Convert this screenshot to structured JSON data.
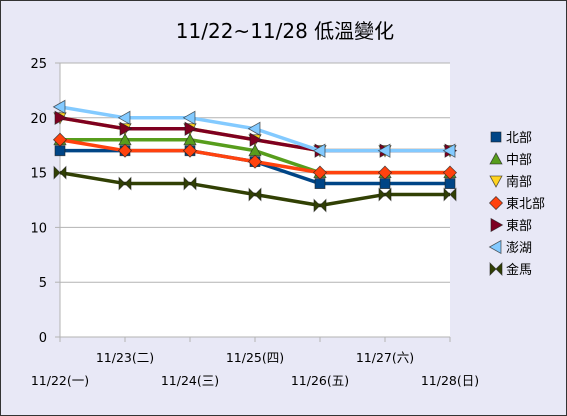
{
  "colors": {
    "background": "#e8e8f6",
    "plot_background": "#ffffff",
    "grid": "#b3b3b3",
    "axis": "#b3b3b3",
    "border": "#333333"
  },
  "chart_data": {
    "type": "line",
    "title": "11/22~11/28 低溫變化",
    "xlabel": "",
    "ylabel": "",
    "categories": [
      "11/22(一)",
      "11/23(二)",
      "11/24(三)",
      "11/25(四)",
      "11/26(五)",
      "11/27(六)",
      "11/28(日)"
    ],
    "ylim": [
      0,
      25
    ],
    "yticks": [
      0,
      5,
      10,
      15,
      20,
      25
    ],
    "grid": true,
    "legend_position": "right",
    "series": [
      {
        "name": "北部",
        "color": "#004586",
        "marker": "square",
        "values": [
          17,
          17,
          17,
          16,
          14,
          14,
          14
        ]
      },
      {
        "name": "中部",
        "color": "#579d1c",
        "marker": "triangle-up",
        "values": [
          18,
          18,
          18,
          17,
          15,
          15,
          15
        ]
      },
      {
        "name": "南部",
        "color": "#ffd320",
        "marker": "triangle-down",
        "values": [
          20,
          19,
          19,
          18,
          17,
          17,
          17
        ]
      },
      {
        "name": "東北部",
        "color": "#ff420e",
        "marker": "diamond",
        "values": [
          18,
          17,
          17,
          16,
          15,
          15,
          15
        ]
      },
      {
        "name": "東部",
        "color": "#7e0021",
        "marker": "triangle-right",
        "values": [
          20,
          19,
          19,
          18,
          17,
          17,
          17
        ]
      },
      {
        "name": "澎湖",
        "color": "#83caff",
        "marker": "triangle-left",
        "values": [
          21,
          20,
          20,
          19,
          17,
          17,
          17
        ]
      },
      {
        "name": "金馬",
        "color": "#314004",
        "marker": "bowtie",
        "values": [
          15,
          14,
          14,
          13,
          12,
          13,
          13
        ]
      }
    ]
  }
}
